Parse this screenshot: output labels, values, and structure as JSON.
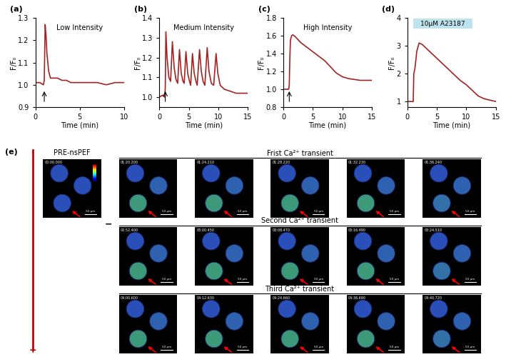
{
  "chart_data": [
    {
      "type": "line",
      "panel": "(a)",
      "title": "Low Intensity",
      "xlabel": "Time (min)",
      "ylabel": "F/F₀",
      "x": [
        0,
        0.5,
        0.9,
        1.0,
        1.05,
        1.1,
        1.2,
        1.3,
        1.5,
        1.7,
        2.0,
        2.5,
        3,
        3.5,
        4,
        5,
        6,
        7,
        8,
        9,
        10
      ],
      "values": [
        1.01,
        1.01,
        1.0,
        1.02,
        1.15,
        1.27,
        1.22,
        1.14,
        1.06,
        1.03,
        1.03,
        1.03,
        1.02,
        1.02,
        1.01,
        1.01,
        1.01,
        1.01,
        1.0,
        1.01,
        1.01
      ],
      "color": "#a52222",
      "xlim": [
        0,
        10
      ],
      "xticks": [
        0,
        5,
        10
      ],
      "ylim": [
        0.9,
        1.3
      ],
      "yticks": [
        0.9,
        1.0,
        1.1,
        1.2,
        1.3
      ],
      "arrow": 1.0
    },
    {
      "type": "line",
      "panel": "(b)",
      "title": "Medium Intensity",
      "xlabel": "Time (min)",
      "ylabel": "F/F₀",
      "x": [
        0,
        0.5,
        0.9,
        1.0,
        1.1,
        1.3,
        1.6,
        1.9,
        2.2,
        2.5,
        2.8,
        3.1,
        3.4,
        3.7,
        4.0,
        4.2,
        4.5,
        4.8,
        5.1,
        5.3,
        5.6,
        5.9,
        6.2,
        6.4,
        6.8,
        7.1,
        7.4,
        7.7,
        8.1,
        8.4,
        8.8,
        9.2,
        9.6,
        9.9,
        10.3,
        11,
        12,
        13,
        14,
        15
      ],
      "values": [
        1.0,
        1.01,
        1.0,
        1.05,
        1.33,
        1.2,
        1.1,
        1.08,
        1.28,
        1.15,
        1.09,
        1.07,
        1.24,
        1.12,
        1.08,
        1.07,
        1.23,
        1.12,
        1.08,
        1.06,
        1.22,
        1.12,
        1.08,
        1.06,
        1.24,
        1.13,
        1.08,
        1.06,
        1.25,
        1.13,
        1.07,
        1.06,
        1.22,
        1.12,
        1.06,
        1.04,
        1.03,
        1.02,
        1.02,
        1.02
      ],
      "color": "#a52222",
      "xlim": [
        0,
        15
      ],
      "xticks": [
        0,
        5,
        10,
        15
      ],
      "ylim": [
        0.95,
        1.4
      ],
      "yticks": [
        1.0,
        1.1,
        1.2,
        1.3,
        1.4
      ],
      "arrow": 1.0
    },
    {
      "type": "line",
      "panel": "(c)",
      "title": "High Intensity",
      "xlabel": "Time (min)",
      "ylabel": "F/F₀",
      "x": [
        0,
        0.5,
        0.9,
        1.0,
        1.1,
        1.2,
        1.4,
        1.6,
        2,
        3,
        4,
        5,
        6,
        7,
        8,
        9,
        10,
        11,
        12,
        13,
        14,
        15
      ],
      "values": [
        1.0,
        1.0,
        1.0,
        1.05,
        1.35,
        1.55,
        1.6,
        1.61,
        1.59,
        1.52,
        1.47,
        1.42,
        1.37,
        1.32,
        1.25,
        1.18,
        1.14,
        1.12,
        1.11,
        1.1,
        1.1,
        1.1
      ],
      "color": "#a52222",
      "xlim": [
        0,
        15
      ],
      "xticks": [
        0,
        5,
        10,
        15
      ],
      "ylim": [
        0.8,
        1.8
      ],
      "yticks": [
        0.8,
        1.0,
        1.2,
        1.4,
        1.6,
        1.8
      ],
      "arrow": 1.0
    },
    {
      "type": "line",
      "panel": "(d)",
      "title": "10μM A23187",
      "xlabel": "Time (min)",
      "ylabel": "F/F₀",
      "x": [
        0,
        0.5,
        1.0,
        1.1,
        1.3,
        1.6,
        2.0,
        2.5,
        3,
        4,
        5,
        6,
        7,
        8,
        9,
        10,
        10.5,
        11,
        12,
        13,
        14,
        15
      ],
      "values": [
        1.0,
        1.0,
        1.0,
        2.0,
        2.2,
        2.8,
        3.1,
        3.05,
        2.95,
        2.75,
        2.55,
        2.35,
        2.15,
        1.95,
        1.75,
        1.6,
        1.5,
        1.4,
        1.2,
        1.1,
        1.05,
        1.0
      ],
      "color": "#a52222",
      "xlim": [
        0,
        15
      ],
      "xticks": [
        0,
        5,
        10,
        15
      ],
      "ylim": [
        0.8,
        4
      ],
      "yticks": [
        1,
        2,
        3,
        4
      ],
      "drug_span": [
        1,
        11
      ]
    }
  ],
  "images": {
    "panel": "(e)",
    "pre_label": "PRE-nsPEF",
    "pre_time": "00:00.000",
    "polarity": [
      "+",
      "−"
    ],
    "scale_bar": "50 μm",
    "rows": [
      {
        "label": "Frist Ca²⁺ transient",
        "times": [
          "01:20.200",
          "01:24.210",
          "01:28.220",
          "01:32.230",
          "01:36.240"
        ]
      },
      {
        "label": "Second Ca²⁺ transient",
        "times": [
          "02:52.400",
          "03:00.450",
          "03:08.470",
          "03:16.490",
          "03:24.510"
        ]
      },
      {
        "label": "Third Ca²⁺ transient",
        "times": [
          "04:00.600",
          "04:12.630",
          "04:24.660",
          "04:36.690",
          "04:40.720"
        ]
      }
    ]
  }
}
